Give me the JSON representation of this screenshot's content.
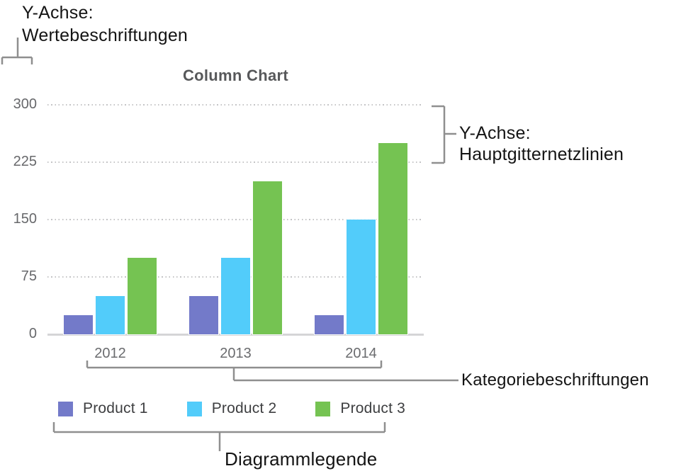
{
  "annotations": {
    "value_axis": {
      "line1": "Y-Achse:",
      "line2": "Wertebeschriftungen"
    },
    "gridlines_axis": {
      "line1": "Y-Achse:",
      "line2": "Hauptgitternetzlinien"
    },
    "category_labels": "Kategoriebeschriftungen",
    "chart_legend": "Diagrammlegende"
  },
  "chart_data": {
    "type": "bar",
    "title": "Column Chart",
    "categories": [
      "2012",
      "2013",
      "2014"
    ],
    "series": [
      {
        "name": "Product 1",
        "color": "#737AC9",
        "values": [
          25,
          50,
          25
        ]
      },
      {
        "name": "Product 2",
        "color": "#52CCFA",
        "values": [
          50,
          100,
          150
        ]
      },
      {
        "name": "Product 3",
        "color": "#75C352",
        "values": [
          100,
          200,
          250
        ]
      }
    ],
    "y_ticks": [
      0,
      75,
      150,
      225,
      300
    ],
    "ylim": [
      0,
      300
    ],
    "grid": "horizontal-dotted",
    "legend_position": "bottom",
    "colors": {
      "axis_line": "#d5d5d7",
      "gridline": "#c4c4c6",
      "callout_line": "#8f8f8f",
      "chart_text": "#67686b",
      "annotation_text": "#141414"
    }
  }
}
